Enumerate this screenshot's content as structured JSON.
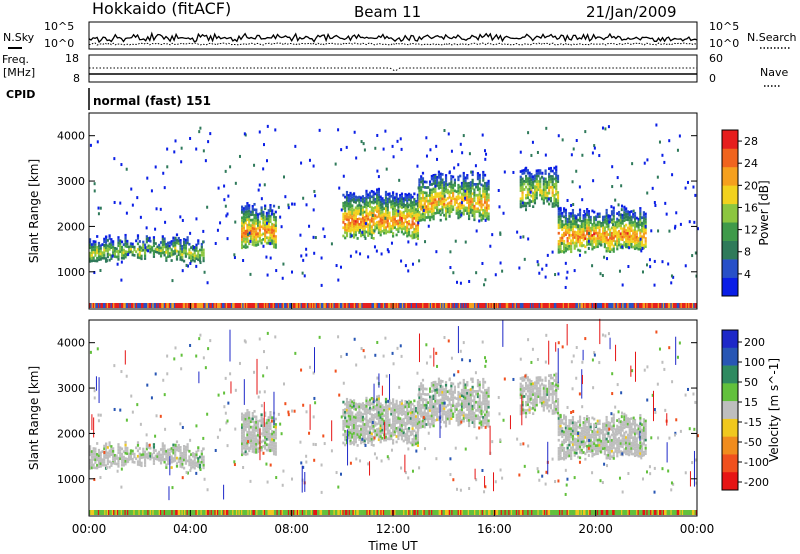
{
  "header": {
    "station": "Hokkaido (fitACF)",
    "beam": "Beam 11",
    "date": "21/Jan/2009"
  },
  "colors": {
    "power_scale": [
      "#0a1ee6",
      "#2850c8",
      "#2f7a5a",
      "#3f9a4a",
      "#8cc640",
      "#f2d21e",
      "#f5a01e",
      "#f0641e",
      "#e61e1e"
    ],
    "velocity_scale": [
      "#1e28c8",
      "#2856b4",
      "#2f8a60",
      "#62c03c",
      "#bebebe",
      "#f0c81e",
      "#f08c1e",
      "#f0501e",
      "#e61414"
    ],
    "ground_scatter": "#bebebe"
  },
  "chart_data": [
    {
      "type": "line",
      "name": "noise-panel",
      "left_label": "N.Sky",
      "right_label": "N.Search",
      "left_ticks": [
        "10^5",
        "10^0"
      ],
      "right_ticks": [
        "10^5",
        "10^0"
      ],
      "y_scale": "log",
      "ylim": [
        1,
        100000
      ]
    },
    {
      "type": "line",
      "name": "frequency-panel",
      "left_label_1": "Freq.",
      "left_label_2": "[MHz]",
      "right_label": "Nave",
      "left_ticks": [
        "18",
        "8"
      ],
      "right_ticks": [
        "60",
        "0"
      ],
      "freq_mhz_approx": 10.3,
      "nave_approx": 22
    },
    {
      "type": "table",
      "name": "cpid-panel",
      "label": "CPID",
      "value": "normal (fast) 151"
    },
    {
      "type": "heatmap",
      "name": "power-panel",
      "ylabel": "Slant Range [km]",
      "ylim": [
        180,
        4500
      ],
      "y_ticks": [
        1000,
        2000,
        3000,
        4000
      ],
      "x_ticks": [
        "00:00",
        "04:00",
        "08:00",
        "12:00",
        "16:00",
        "20:00",
        "00:00"
      ],
      "colorbar": {
        "label": "Power [dB]",
        "ticks": [
          4,
          8,
          12,
          16,
          20,
          24,
          28
        ],
        "range": [
          0,
          30
        ]
      },
      "echo_bands": [
        {
          "start_ut": 0.0,
          "end_ut": 4.5,
          "range_km": [
            1200,
            1800
          ],
          "peak_db": 20
        },
        {
          "start_ut": 6.0,
          "end_ut": 7.4,
          "range_km": [
            1500,
            2500
          ],
          "peak_db": 28
        },
        {
          "start_ut": 10.0,
          "end_ut": 13.0,
          "range_km": [
            1700,
            2800
          ],
          "peak_db": 28
        },
        {
          "start_ut": 13.0,
          "end_ut": 15.8,
          "range_km": [
            2100,
            3200
          ],
          "peak_db": 26
        },
        {
          "start_ut": 17.0,
          "end_ut": 18.5,
          "range_km": [
            2400,
            3300
          ],
          "peak_db": 22
        },
        {
          "start_ut": 18.5,
          "end_ut": 22.0,
          "range_km": [
            1400,
            2400
          ],
          "peak_db": 28
        }
      ]
    },
    {
      "type": "heatmap",
      "name": "velocity-panel",
      "ylabel": "Slant Range [km]",
      "xlabel": "Time UT",
      "ylim": [
        180,
        4500
      ],
      "y_ticks": [
        1000,
        2000,
        3000,
        4000
      ],
      "x_ticks": [
        "00:00",
        "04:00",
        "08:00",
        "12:00",
        "16:00",
        "20:00",
        "00:00"
      ],
      "colorbar": {
        "label": "Velocity [m s^-1]",
        "ticks": [
          200,
          100,
          50,
          15,
          -15,
          -50,
          -100,
          -200
        ]
      },
      "dominant": "ground scatter (-15 to 15 m/s), mostly grey"
    }
  ]
}
